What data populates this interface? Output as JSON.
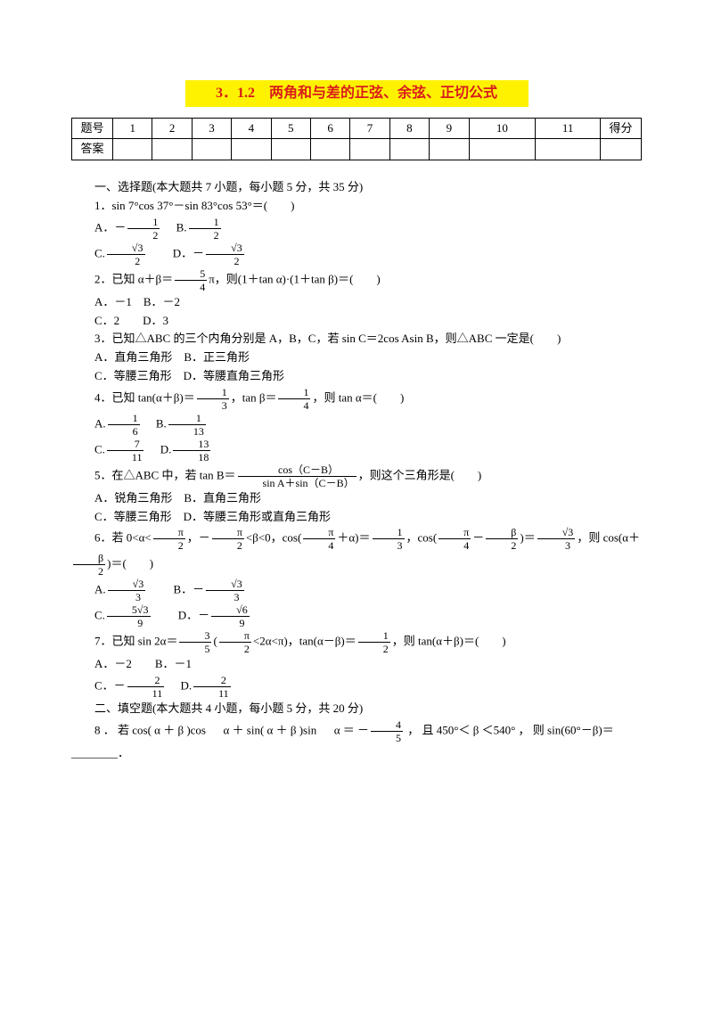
{
  "title": "3．1.2　两角和与差的正弦、余弦、正切公式",
  "table": {
    "row1": [
      "题号",
      "1",
      "2",
      "3",
      "4",
      "5",
      "6",
      "7",
      "8",
      "9",
      "10",
      "11",
      "得分"
    ],
    "row2": [
      "答案",
      "",
      "",
      "",
      "",
      "",
      "",
      "",
      "",
      "",
      "",
      "",
      ""
    ]
  },
  "section1_header": "一、选择题(本大题共 7 小题，每小题 5 分，共 35 分)",
  "q1_stem": "1．sin 7°cos 37°－sin 83°cos 53°＝(　　)",
  "q1_A_pre": "A．－",
  "q1_A_num": "1",
  "q1_A_den": "2",
  "q1_B_pre": "　B.",
  "q1_B_num": "1",
  "q1_B_den": "2",
  "q1_C_pre": "C.",
  "q1_C_num": "√3",
  "q1_C_den": "2",
  "q1_D_pre": "　　D．－",
  "q1_D_num": "√3",
  "q1_D_den": "2",
  "q2_pre": "2．已知 α＋β＝",
  "q2_num": "5",
  "q2_den": "4",
  "q2_post": "π，则(1＋tan α)·(1＋tan β)＝(　　)",
  "q2_AB": "A．－1　B．－2",
  "q2_CD": "C．2　　D．3",
  "q3_stem": "3．已知△ABC 的三个内角分别是 A，B，C，若 sin C＝2cos Asin B，则△ABC 一定是(　　)",
  "q3_AB": "A．直角三角形　B．正三角形",
  "q3_CD": "C．等腰三角形　D．等腰直角三角形",
  "q4_pre": "4．已知 tan(α＋β)＝",
  "q4_f1n": "1",
  "q4_f1d": "3",
  "q4_mid": "，tan β＝",
  "q4_f2n": "1",
  "q4_f2d": "4",
  "q4_post": "，则 tan α＝(　　)",
  "q4_A_pre": "A.",
  "q4_An": "1",
  "q4_Ad": "6",
  "q4_B_pre": "　B.",
  "q4_Bn": "1",
  "q4_Bd": "13",
  "q4_C_pre": "C.",
  "q4_Cn": "7",
  "q4_Cd": "11",
  "q4_D_pre": "　D.",
  "q4_Dn": "13",
  "q4_Dd": "18",
  "q5_pre": "5．在△ABC 中，若 tan B＝",
  "q5_fn": "cos（C－B）",
  "q5_fd": "sin A＋sin（C－B）",
  "q5_post": "，则这个三角形是(　　)",
  "q5_AB": "A．锐角三角形　B．直角三角形",
  "q5_CD": "C．等腰三角形　D．等腰三角形或直角三角形",
  "q6_1": "6．若 0<α<",
  "q6_f1n": "π",
  "q6_f1d": "2",
  "q6_2": "，－",
  "q6_f2n": "π",
  "q6_f2d": "2",
  "q6_3": "<β<0，cos(",
  "q6_f3n": "π",
  "q6_f3d": "4",
  "q6_4": "＋α)＝",
  "q6_f4n": "1",
  "q6_f4d": "3",
  "q6_5": "，cos(",
  "q6_f5n": "π",
  "q6_f5d": "4",
  "q6_6": "－",
  "q6_f6n": "β",
  "q6_f6d": "2",
  "q6_7": ")＝",
  "q6_f7n": "√3",
  "q6_f7d": "3",
  "q6_8": "，则 cos(α＋",
  "q6_f8n": "β",
  "q6_f8d": "2",
  "q6_9": ")＝(　　)",
  "q6_A_pre": "A.",
  "q6_An": "√3",
  "q6_Ad": "3",
  "q6_B_pre": "　　B．－",
  "q6_Bn": "√3",
  "q6_Bd": "3",
  "q6_C_pre": "C.",
  "q6_Cn": "5√3",
  "q6_Cd": "9",
  "q6_D_pre": "　　D．－",
  "q6_Dn": "√6",
  "q6_Dd": "9",
  "q7_pre": "7．已知 sin 2α＝",
  "q7_f1n": "3",
  "q7_f1d": "5",
  "q7_mid1": "(",
  "q7_f2n": "π",
  "q7_f2d": "2",
  "q7_mid2": "<2α<π)，tan(α－β)＝",
  "q7_f3n": "1",
  "q7_f3d": "2",
  "q7_post": "，则 tan(α＋β)＝(　　)",
  "q7_AB": "A．－2　　B．－1",
  "q7_C_pre": "C．－",
  "q7_Cn": "2",
  "q7_Cd": "11",
  "q7_D_pre": "　D.",
  "q7_Dn": "2",
  "q7_Dd": "11",
  "section2_header": "二、填空题(本大题共 4 小题，每小题 5 分，共 20 分)",
  "q8_pre": "8 ． 若 cos( α ＋ β )cos 　 α ＋ sin( α ＋ β )sin 　 α ＝ －",
  "q8_fn": "4",
  "q8_fd": "5",
  "q8_post": " ， 且 450°＜ β ＜540° ， 则 sin(60°－β)＝________．"
}
